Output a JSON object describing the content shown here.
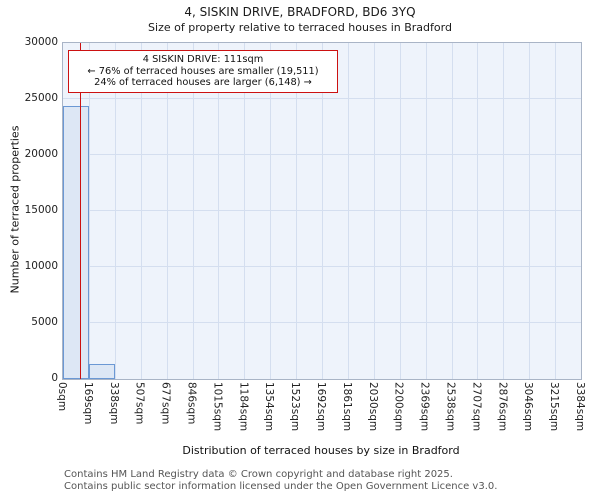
{
  "title": "4, SISKIN DRIVE, BRADFORD, BD6 3YQ",
  "subtitle": "Size of property relative to terraced houses in Bradford",
  "annotation": {
    "line1": "4 SISKIN DRIVE: 111sqm",
    "line2": "← 76% of terraced houses are smaller (19,511)",
    "line3": "24% of terraced houses are larger (6,148) →"
  },
  "footer": {
    "line1": "Contains HM Land Registry data © Crown copyright and database right 2025.",
    "line2": "Contains public sector information licensed under the Open Government Licence v3.0."
  },
  "chart_data": {
    "type": "bar",
    "title": "4, SISKIN DRIVE, BRADFORD, BD6 3YQ",
    "subtitle": "Size of property relative to terraced houses in Bradford",
    "xlabel": "Distribution of terraced houses by size in Bradford",
    "ylabel": "Number of terraced properties",
    "categories": [
      "0sqm",
      "169sqm",
      "338sqm",
      "507sqm",
      "677sqm",
      "846sqm",
      "1015sqm",
      "1184sqm",
      "1354sqm",
      "1523sqm",
      "1692sqm",
      "1861sqm",
      "2030sqm",
      "2200sqm",
      "2369sqm",
      "2538sqm",
      "2707sqm",
      "2876sqm",
      "3046sqm",
      "3215sqm",
      "3384sqm"
    ],
    "values": [
      24400,
      1300,
      0,
      0,
      0,
      0,
      0,
      0,
      0,
      0,
      0,
      0,
      0,
      0,
      0,
      0,
      0,
      0,
      0,
      0
    ],
    "ylim": [
      0,
      30000
    ],
    "yticks": [
      0,
      5000,
      10000,
      15000,
      20000,
      25000,
      30000
    ],
    "x_max": 3384,
    "marker_x": 111,
    "marker_color": "#cc1111",
    "bar_fill": "#dde7f5",
    "bar_border": "#6b98d4",
    "grid": true,
    "legend": "none"
  }
}
